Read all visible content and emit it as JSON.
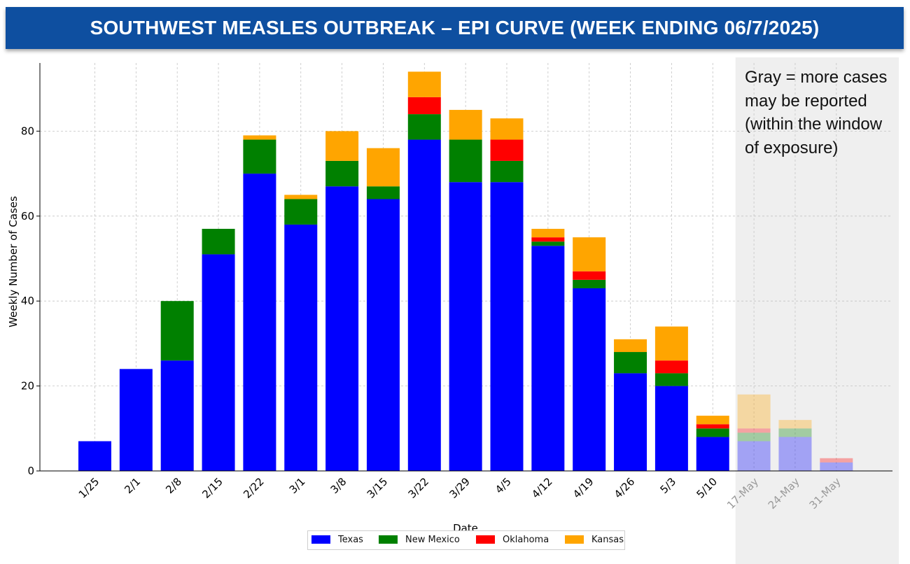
{
  "header": {
    "title": "SOUTHWEST MEASLES OUTBREAK – EPI CURVE (WEEK ENDING 06/7/2025)"
  },
  "note": {
    "text": "Gray = more cases may be reported (within the window of exposure)"
  },
  "chart_data": {
    "type": "bar",
    "stacked": true,
    "title": "SOUTHWEST MEASLES OUTBREAK – EPI CURVE (WEEK ENDING 06/7/2025)",
    "xlabel": "Date",
    "ylabel": "Weekly Number of Cases",
    "ylim": [
      0,
      96
    ],
    "yticks": [
      0,
      20,
      40,
      60,
      80
    ],
    "grid": true,
    "legend_position": "bottom-center",
    "categories": [
      "1/25",
      "2/1",
      "2/8",
      "2/15",
      "2/22",
      "3/1",
      "3/8",
      "3/15",
      "3/22",
      "3/29",
      "4/5",
      "4/12",
      "4/19",
      "4/26",
      "5/3",
      "5/10",
      "17-May",
      "24-May",
      "31-May"
    ],
    "pending_start_index": 16,
    "pending_note": "Gray = more cases may be reported (within the window of exposure)",
    "series": [
      {
        "name": "Texas",
        "color": "#0000ff",
        "values": [
          7,
          24,
          26,
          51,
          70,
          58,
          67,
          64,
          78,
          68,
          68,
          53,
          43,
          23,
          20,
          8,
          7,
          8,
          2
        ]
      },
      {
        "name": "New Mexico",
        "color": "#008000",
        "values": [
          0,
          0,
          14,
          6,
          8,
          6,
          6,
          3,
          6,
          10,
          5,
          1,
          2,
          5,
          3,
          2,
          2,
          2,
          0
        ]
      },
      {
        "name": "Oklahoma",
        "color": "#ff0000",
        "values": [
          0,
          0,
          0,
          0,
          0,
          0,
          0,
          0,
          4,
          0,
          5,
          1,
          2,
          0,
          3,
          1,
          1,
          0,
          1
        ]
      },
      {
        "name": "Kansas",
        "color": "#ffa500",
        "values": [
          0,
          0,
          0,
          0,
          1,
          1,
          7,
          9,
          6,
          7,
          5,
          2,
          8,
          3,
          8,
          2,
          8,
          2,
          0
        ]
      }
    ]
  }
}
